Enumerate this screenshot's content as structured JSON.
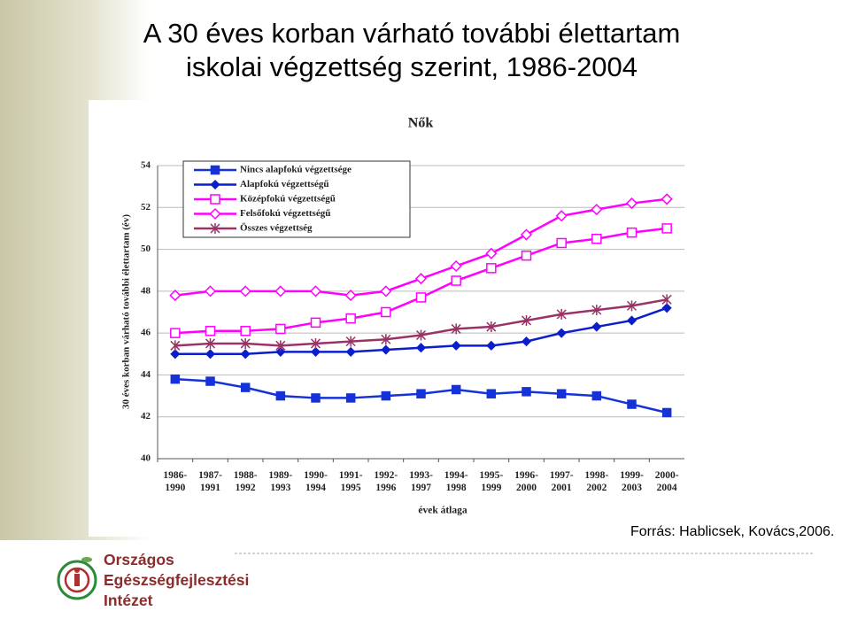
{
  "slide": {
    "title": [
      "A 30 éves korban várható további élettartam",
      "iskolai végzettség szerint, 1986-2004"
    ],
    "source": "Forrás: Hablicsek, Kovács,2006.",
    "logo": [
      "Országos",
      "Egészségfejlesztési",
      "Intézet"
    ]
  },
  "chart_data": {
    "type": "line",
    "title": "Nők",
    "x_label": "évek átlaga",
    "y_label": "30 éves korban várható további élettartam (év)",
    "categories": [
      "1986-1990",
      "1987-1991",
      "1988-1992",
      "1989-1993",
      "1990-1994",
      "1991-1995",
      "1992-1996",
      "1993-1997",
      "1994-1998",
      "1995-1999",
      "1996-2000",
      "1997-2001",
      "1998-2002",
      "1999-2003",
      "2000-2004"
    ],
    "series": [
      {
        "name": "Nincs alapfokú végzettsége",
        "color": "#1432d8",
        "marker": "square",
        "values": [
          43.8,
          43.7,
          43.4,
          43.0,
          42.9,
          42.9,
          43.0,
          43.1,
          43.3,
          43.1,
          43.2,
          43.1,
          43.0,
          42.6,
          42.2
        ]
      },
      {
        "name": "Alapfokú végzettségű",
        "color": "#0a1ecc",
        "marker": "diamond",
        "values": [
          45.0,
          45.0,
          45.0,
          45.1,
          45.1,
          45.1,
          45.2,
          45.3,
          45.4,
          45.4,
          45.6,
          46.0,
          46.3,
          46.6,
          47.2
        ]
      },
      {
        "name": "Középfokú végzettségű",
        "color": "#ff00ff",
        "marker": "open-square",
        "values": [
          46.0,
          46.1,
          46.1,
          46.2,
          46.5,
          46.7,
          47.0,
          47.7,
          48.5,
          49.1,
          49.7,
          50.3,
          50.5,
          50.8,
          51.0
        ]
      },
      {
        "name": "Felsőfokú végzettségű",
        "color": "#ff00ff",
        "marker": "open-diamond",
        "values": [
          47.8,
          48.0,
          48.0,
          48.0,
          48.0,
          47.8,
          48.0,
          48.6,
          49.2,
          49.8,
          50.7,
          51.6,
          51.9,
          52.2,
          52.4
        ]
      },
      {
        "name": "Összes végzettség",
        "color": "#993366",
        "marker": "asterisk",
        "values": [
          45.4,
          45.5,
          45.5,
          45.4,
          45.5,
          45.6,
          45.7,
          45.9,
          46.2,
          46.3,
          46.6,
          46.9,
          47.1,
          47.3,
          47.6
        ]
      }
    ],
    "ylim": [
      40,
      54
    ],
    "yticks": [
      40,
      42,
      44,
      46,
      48,
      50,
      52,
      54
    ],
    "grid": true,
    "legend": "upper left"
  }
}
